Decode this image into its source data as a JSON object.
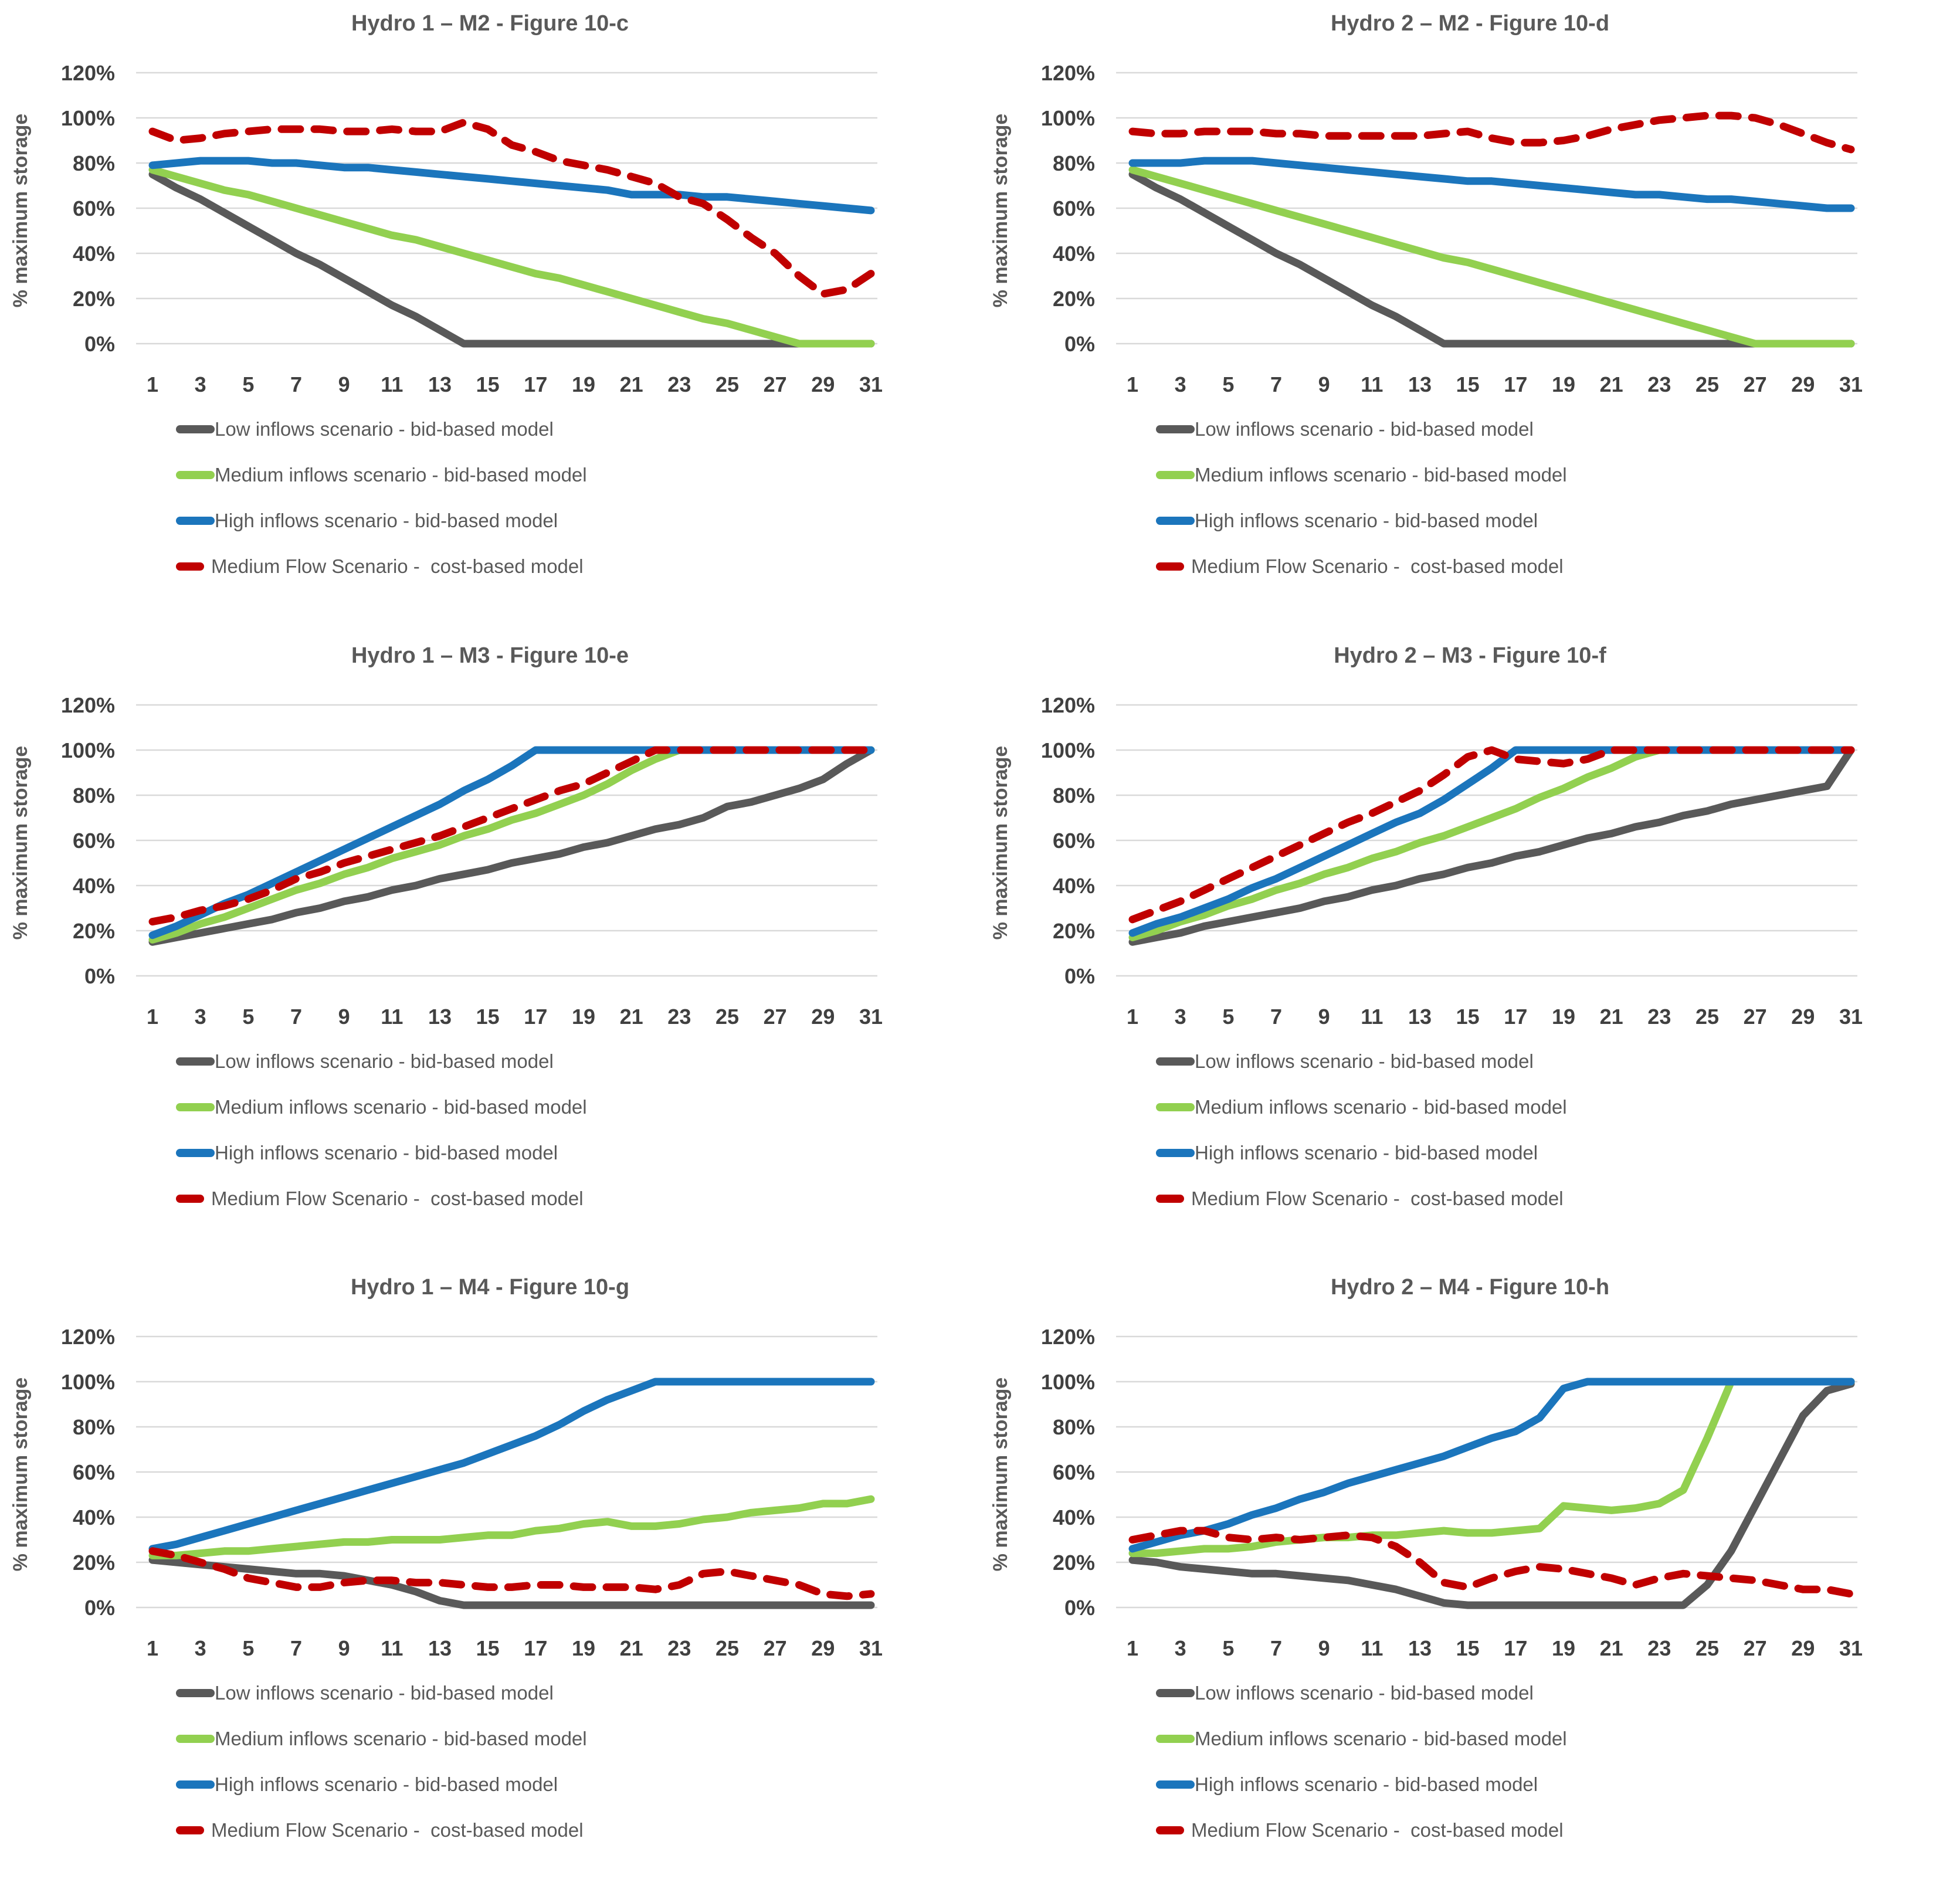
{
  "colors": {
    "grid": "#D9D9D9",
    "tick_text": "#404040",
    "title_text": "#595959",
    "background": "#FFFFFF"
  },
  "series_meta": [
    {
      "key": "low",
      "label": "Low inflows scenario - bid-based model",
      "color": "#595959",
      "dashed": false
    },
    {
      "key": "medium",
      "label": "Medium inflows scenario - bid-based model",
      "color": "#92D050",
      "dashed": false
    },
    {
      "key": "high",
      "label": "High inflows scenario - bid-based model",
      "color": "#1B75BC",
      "dashed": false
    },
    {
      "key": "cost",
      "label": "Medium Flow Scenario -  cost-based model",
      "color": "#C00000",
      "dashed": true
    }
  ],
  "axis": {
    "ylabel": "% maximum storage",
    "y_ticks": [
      "0%",
      "20%",
      "40%",
      "60%",
      "80%",
      "100%",
      "120%"
    ],
    "y_tick_values": [
      0,
      20,
      40,
      60,
      80,
      100,
      120
    ],
    "x_ticks": [
      1,
      3,
      5,
      7,
      9,
      11,
      13,
      15,
      17,
      19,
      21,
      23,
      25,
      27,
      29,
      31
    ],
    "xlim": [
      1,
      31
    ],
    "ylim": [
      0,
      120
    ],
    "grid": "horizontal"
  },
  "chart_data": [
    {
      "type": "line",
      "title": "Hydro 1 – M2 - Figure 10-c",
      "xlabel": "",
      "ylabel": "% maximum storage",
      "x_days": [
        1,
        31
      ],
      "series": [
        {
          "name": "Low inflows scenario - bid-based model",
          "values": [
            75,
            69,
            64,
            58,
            52,
            46,
            40,
            35,
            29,
            23,
            17,
            12,
            6,
            0,
            0,
            0,
            0,
            0,
            0,
            0,
            0,
            0,
            0,
            0,
            0,
            0,
            0,
            0,
            0,
            0,
            0
          ]
        },
        {
          "name": "Medium inflows scenario - bid-based model",
          "values": [
            77,
            74,
            71,
            68,
            66,
            63,
            60,
            57,
            54,
            51,
            48,
            46,
            43,
            40,
            37,
            34,
            31,
            29,
            26,
            23,
            20,
            17,
            14,
            11,
            9,
            6,
            3,
            0,
            0,
            0,
            0
          ]
        },
        {
          "name": "High inflows scenario - bid-based model",
          "values": [
            79,
            80,
            81,
            81,
            81,
            80,
            80,
            79,
            78,
            78,
            77,
            76,
            75,
            74,
            73,
            72,
            71,
            70,
            69,
            68,
            66,
            66,
            66,
            65,
            65,
            64,
            63,
            62,
            61,
            60,
            59
          ]
        },
        {
          "name": "Medium Flow Scenario - cost-based model",
          "values": [
            94,
            90,
            91,
            93,
            94,
            95,
            95,
            95,
            94,
            94,
            95,
            94,
            94,
            98,
            95,
            88,
            85,
            81,
            79,
            77,
            74,
            71,
            65,
            62,
            55,
            47,
            40,
            30,
            22,
            24,
            31
          ]
        }
      ]
    },
    {
      "type": "line",
      "title": "Hydro 2 – M2 - Figure 10-d",
      "xlabel": "",
      "ylabel": "% maximum storage",
      "x_days": [
        1,
        31
      ],
      "series": [
        {
          "name": "Low inflows scenario - bid-based model",
          "values": [
            75,
            69,
            64,
            58,
            52,
            46,
            40,
            35,
            29,
            23,
            17,
            12,
            6,
            0,
            0,
            0,
            0,
            0,
            0,
            0,
            0,
            0,
            0,
            0,
            0,
            0,
            0,
            0,
            0,
            0,
            0
          ]
        },
        {
          "name": "Medium inflows scenario - bid-based model",
          "values": [
            77,
            74,
            71,
            68,
            65,
            62,
            59,
            56,
            53,
            50,
            47,
            44,
            41,
            38,
            36,
            33,
            30,
            27,
            24,
            21,
            18,
            15,
            12,
            9,
            6,
            3,
            0,
            0,
            0,
            0,
            0
          ]
        },
        {
          "name": "High inflows scenario - bid-based model",
          "values": [
            80,
            80,
            80,
            81,
            81,
            81,
            80,
            79,
            78,
            77,
            76,
            75,
            74,
            73,
            72,
            72,
            71,
            70,
            69,
            68,
            67,
            66,
            66,
            65,
            64,
            64,
            63,
            62,
            61,
            60,
            60
          ]
        },
        {
          "name": "Medium Flow Scenario - cost-based model",
          "values": [
            94,
            93,
            93,
            94,
            94,
            94,
            93,
            93,
            92,
            92,
            92,
            92,
            92,
            93,
            94,
            91,
            89,
            89,
            90,
            92,
            95,
            97,
            99,
            100,
            101,
            101,
            100,
            97,
            93,
            89,
            86
          ]
        }
      ]
    },
    {
      "type": "line",
      "title": "Hydro 1 – M3 - Figure 10-e",
      "xlabel": "",
      "ylabel": "% maximum storage",
      "x_days": [
        1,
        31
      ],
      "series": [
        {
          "name": "Low inflows scenario - bid-based model",
          "values": [
            15,
            17,
            19,
            21,
            23,
            25,
            28,
            30,
            33,
            35,
            38,
            40,
            43,
            45,
            47,
            50,
            52,
            54,
            57,
            59,
            62,
            65,
            67,
            70,
            75,
            77,
            80,
            83,
            87,
            94,
            100
          ]
        },
        {
          "name": "Medium inflows scenario - bid-based model",
          "values": [
            16,
            19,
            23,
            26,
            30,
            34,
            38,
            41,
            45,
            48,
            52,
            55,
            58,
            62,
            65,
            69,
            72,
            76,
            80,
            85,
            91,
            96,
            100,
            100,
            100,
            100,
            100,
            100,
            100,
            100,
            100
          ]
        },
        {
          "name": "High inflows scenario - bid-based model",
          "values": [
            18,
            22,
            27,
            32,
            36,
            41,
            46,
            51,
            56,
            61,
            66,
            71,
            76,
            82,
            87,
            93,
            100,
            100,
            100,
            100,
            100,
            100,
            100,
            100,
            100,
            100,
            100,
            100,
            100,
            100,
            100
          ]
        },
        {
          "name": "Medium Flow Scenario - cost-based model",
          "values": [
            24,
            26,
            29,
            31,
            34,
            38,
            43,
            46,
            50,
            53,
            56,
            59,
            62,
            66,
            70,
            74,
            78,
            82,
            85,
            90,
            95,
            100,
            100,
            100,
            100,
            100,
            100,
            100,
            100,
            100,
            100
          ]
        }
      ]
    },
    {
      "type": "line",
      "title": "Hydro 2 – M3 - Figure 10-f",
      "xlabel": "",
      "ylabel": "% maximum storage",
      "x_days": [
        1,
        31
      ],
      "series": [
        {
          "name": "Low inflows scenario - bid-based model",
          "values": [
            15,
            17,
            19,
            22,
            24,
            26,
            28,
            30,
            33,
            35,
            38,
            40,
            43,
            45,
            48,
            50,
            53,
            55,
            58,
            61,
            63,
            66,
            68,
            71,
            73,
            76,
            78,
            80,
            82,
            84,
            100
          ]
        },
        {
          "name": "Medium inflows scenario - bid-based model",
          "values": [
            17,
            20,
            24,
            27,
            31,
            34,
            38,
            41,
            45,
            48,
            52,
            55,
            59,
            62,
            66,
            70,
            74,
            79,
            83,
            88,
            92,
            97,
            100,
            100,
            100,
            100,
            100,
            100,
            100,
            100,
            100
          ]
        },
        {
          "name": "High inflows scenario - bid-based model",
          "values": [
            19,
            23,
            26,
            30,
            34,
            39,
            43,
            48,
            53,
            58,
            63,
            68,
            72,
            78,
            85,
            92,
            100,
            100,
            100,
            100,
            100,
            100,
            100,
            100,
            100,
            100,
            100,
            100,
            100,
            100,
            100
          ]
        },
        {
          "name": "Medium Flow Scenario - cost-based model",
          "values": [
            25,
            29,
            33,
            38,
            43,
            48,
            53,
            58,
            63,
            68,
            72,
            77,
            82,
            89,
            97,
            100,
            96,
            95,
            94,
            96,
            100,
            100,
            100,
            100,
            100,
            100,
            100,
            100,
            100,
            100,
            100
          ]
        }
      ]
    },
    {
      "type": "line",
      "title": "Hydro 1 – M4 - Figure 10-g",
      "xlabel": "",
      "ylabel": "% maximum storage",
      "x_days": [
        1,
        31
      ],
      "series": [
        {
          "name": "Low inflows scenario - bid-based model",
          "values": [
            21,
            20,
            19,
            18,
            17,
            16,
            15,
            15,
            14,
            12,
            10,
            7,
            3,
            1,
            1,
            1,
            1,
            1,
            1,
            1,
            1,
            1,
            1,
            1,
            1,
            1,
            1,
            1,
            1,
            1,
            1
          ]
        },
        {
          "name": "Medium inflows scenario - bid-based model",
          "values": [
            23,
            23,
            24,
            25,
            25,
            26,
            27,
            28,
            29,
            29,
            30,
            30,
            30,
            31,
            32,
            32,
            34,
            35,
            37,
            38,
            36,
            36,
            37,
            39,
            40,
            42,
            43,
            44,
            46,
            46,
            48
          ]
        },
        {
          "name": "High inflows scenario - bid-based model",
          "values": [
            26,
            28,
            31,
            34,
            37,
            40,
            43,
            46,
            49,
            52,
            55,
            58,
            61,
            64,
            68,
            72,
            76,
            81,
            87,
            92,
            96,
            100,
            100,
            100,
            100,
            100,
            100,
            100,
            100,
            100,
            100
          ]
        },
        {
          "name": "Medium Flow Scenario - cost-based model",
          "values": [
            25,
            23,
            20,
            17,
            13,
            11,
            9,
            9,
            11,
            12,
            12,
            11,
            11,
            10,
            9,
            9,
            10,
            10,
            9,
            9,
            9,
            8,
            10,
            15,
            16,
            14,
            12,
            10,
            6,
            5,
            6
          ]
        }
      ]
    },
    {
      "type": "line",
      "title": "Hydro 2 – M4 - Figure 10-h",
      "xlabel": "",
      "ylabel": "% maximum storage",
      "x_days": [
        1,
        31
      ],
      "series": [
        {
          "name": "Low inflows scenario - bid-based model",
          "values": [
            21,
            20,
            18,
            17,
            16,
            15,
            15,
            14,
            13,
            12,
            10,
            8,
            5,
            2,
            1,
            1,
            1,
            1,
            1,
            1,
            1,
            1,
            1,
            1,
            10,
            25,
            45,
            65,
            85,
            96,
            99
          ]
        },
        {
          "name": "Medium inflows scenario - bid-based model",
          "values": [
            24,
            24,
            25,
            26,
            26,
            27,
            29,
            30,
            31,
            31,
            32,
            32,
            33,
            34,
            33,
            33,
            34,
            35,
            45,
            44,
            43,
            44,
            46,
            52,
            75,
            100,
            100,
            100,
            100,
            100,
            100
          ]
        },
        {
          "name": "High inflows scenario - bid-based model",
          "values": [
            26,
            29,
            32,
            34,
            37,
            41,
            44,
            48,
            51,
            55,
            58,
            61,
            64,
            67,
            71,
            75,
            78,
            84,
            97,
            100,
            100,
            100,
            100,
            100,
            100,
            100,
            100,
            100,
            100,
            100,
            100
          ]
        },
        {
          "name": "Medium Flow Scenario - cost-based model",
          "values": [
            30,
            32,
            34,
            34,
            31,
            30,
            31,
            30,
            31,
            32,
            31,
            27,
            20,
            11,
            9,
            13,
            16,
            18,
            17,
            15,
            13,
            10,
            13,
            15,
            14,
            13,
            12,
            10,
            8,
            8,
            6
          ]
        }
      ]
    }
  ]
}
